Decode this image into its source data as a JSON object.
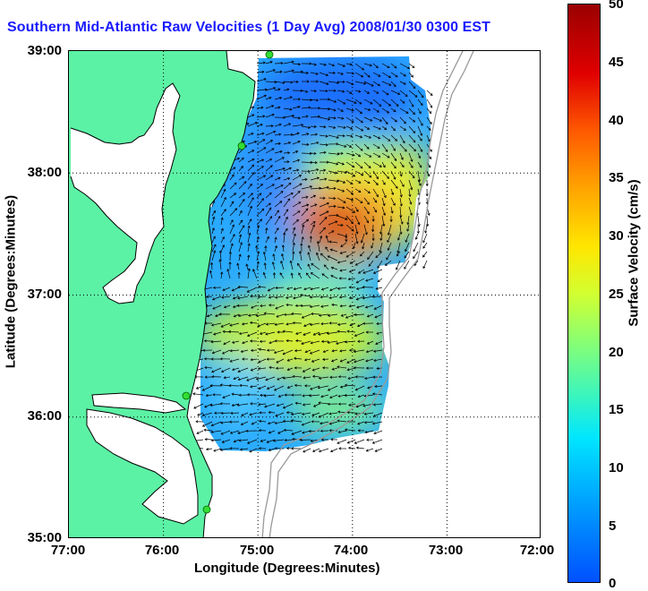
{
  "title": "Southern Mid-Atlantic Raw Velocities (1 Day Avg) 2008/01/30 0300 EST",
  "x_axis": {
    "label": "Longitude (Degrees:Minutes)",
    "ticks": [
      "77:00",
      "76:00",
      "75:00",
      "74:00",
      "73:00",
      "72:00"
    ]
  },
  "y_axis": {
    "label": "Latitude (Degrees:Minutes)",
    "ticks": [
      "39:00",
      "38:00",
      "37:00",
      "36:00",
      "35:00"
    ]
  },
  "colorbar": {
    "label": "Surface Velocity (cm/s)",
    "ticks": [
      "50",
      "45",
      "40",
      "35",
      "30",
      "25",
      "20",
      "15",
      "10",
      "5",
      "0"
    ],
    "range": [
      0,
      50
    ],
    "colormap": "jet"
  },
  "map": {
    "lon_range": [
      -77,
      -72
    ],
    "lat_range": [
      35,
      39
    ],
    "land_color": "#5cf2a5",
    "gridlines": "dotted",
    "station_color": "#33dd33"
  }
}
